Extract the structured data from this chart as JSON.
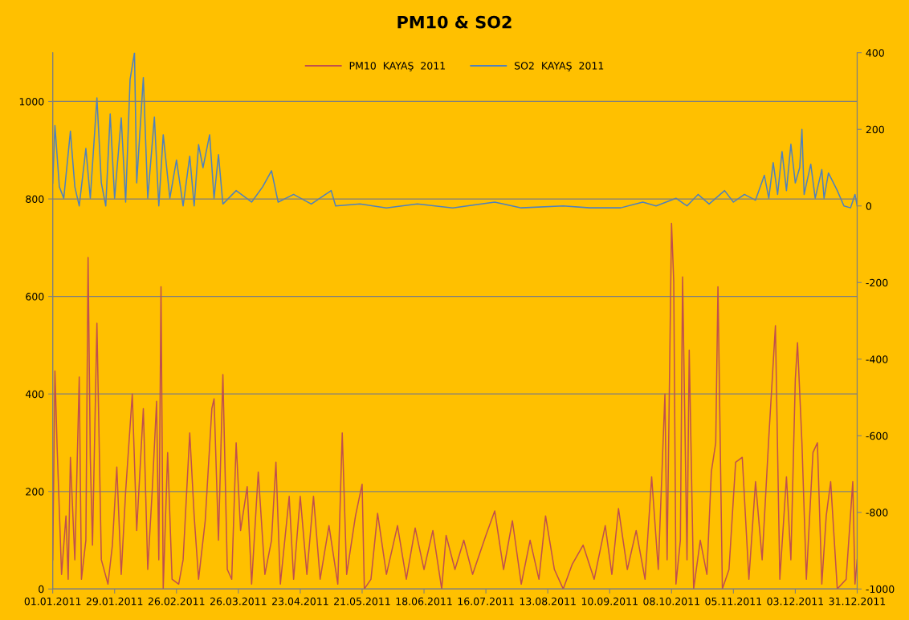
{
  "chart_data": {
    "type": "line",
    "title": "PM10 & SO2",
    "xlim": [
      "2011-01-01",
      "2011-12-31"
    ],
    "xticks": [
      {
        "value": "2011-01-01",
        "label": "01.01.2011"
      },
      {
        "value": "2011-01-29",
        "label": "29.01.2011"
      },
      {
        "value": "2011-02-26",
        "label": "26.02.2011"
      },
      {
        "value": "2011-03-26",
        "label": "26.03.2011"
      },
      {
        "value": "2011-04-23",
        "label": "23.04.2011"
      },
      {
        "value": "2011-05-21",
        "label": "21.05.2011"
      },
      {
        "value": "2011-06-18",
        "label": "18.06.2011"
      },
      {
        "value": "2011-07-16",
        "label": "16.07.2011"
      },
      {
        "value": "2011-08-13",
        "label": "13.08.2011"
      },
      {
        "value": "2011-09-10",
        "label": "10.09.2011"
      },
      {
        "value": "2011-10-08",
        "label": "08.10.2011"
      },
      {
        "value": "2011-11-05",
        "label": "05.11.2011"
      },
      {
        "value": "2011-12-03",
        "label": "03.12.2011"
      },
      {
        "value": "2011-12-31",
        "label": "31.12.2011"
      }
    ],
    "ylim": [
      0,
      1100
    ],
    "yticks": [
      0,
      200,
      400,
      600,
      800,
      1000
    ],
    "y2lim": [
      -1000,
      400
    ],
    "y2ticks": [
      {
        "value": -1000,
        "label": "-1000"
      },
      {
        "value": -800,
        "label": "-800"
      },
      {
        "value": -600,
        "label": "-600"
      },
      {
        "value": -400,
        "label": "-400"
      },
      {
        "value": -200,
        "label": "-200"
      },
      0,
      200,
      400
    ],
    "grid": "y",
    "legend": "top",
    "series": [
      {
        "name": "PM10  KAYAŞ  2011",
        "color": "#c0504d",
        "x": [
          "2011-01-01",
          "2011-01-02",
          "2011-01-03",
          "2011-01-05",
          "2011-01-07",
          "2011-01-08",
          "2011-01-09",
          "2011-01-11",
          "2011-01-13",
          "2011-01-14",
          "2011-01-16",
          "2011-01-17",
          "2011-01-18",
          "2011-01-19",
          "2011-01-21",
          "2011-01-23",
          "2011-01-26",
          "2011-01-28",
          "2011-01-30",
          "2011-02-01",
          "2011-02-03",
          "2011-02-06",
          "2011-02-08",
          "2011-02-11",
          "2011-02-13",
          "2011-02-15",
          "2011-02-17",
          "2011-02-18",
          "2011-02-19",
          "2011-02-20",
          "2011-02-22",
          "2011-02-24",
          "2011-02-27",
          "2011-03-01",
          "2011-03-04",
          "2011-03-06",
          "2011-03-08",
          "2011-03-11",
          "2011-03-14",
          "2011-03-15",
          "2011-03-17",
          "2011-03-19",
          "2011-03-21",
          "2011-03-23",
          "2011-03-25",
          "2011-03-27",
          "2011-03-30",
          "2011-04-01",
          "2011-04-04",
          "2011-04-07",
          "2011-04-10",
          "2011-04-12",
          "2011-04-14",
          "2011-04-18",
          "2011-04-20",
          "2011-04-23",
          "2011-04-26",
          "2011-04-29",
          "2011-05-02",
          "2011-05-06",
          "2011-05-10",
          "2011-05-12",
          "2011-05-14",
          "2011-05-18",
          "2011-05-21",
          "2011-05-22",
          "2011-05-25",
          "2011-05-28",
          "2011-06-01",
          "2011-06-06",
          "2011-06-10",
          "2011-06-14",
          "2011-06-18",
          "2011-06-22",
          "2011-06-26",
          "2011-06-28",
          "2011-07-02",
          "2011-07-06",
          "2011-07-10",
          "2011-07-16",
          "2011-07-20",
          "2011-07-24",
          "2011-07-28",
          "2011-08-01",
          "2011-08-05",
          "2011-08-09",
          "2011-08-12",
          "2011-08-16",
          "2011-08-20",
          "2011-08-24",
          "2011-08-29",
          "2011-09-03",
          "2011-09-08",
          "2011-09-11",
          "2011-09-14",
          "2011-09-18",
          "2011-09-22",
          "2011-09-26",
          "2011-09-29",
          "2011-10-02",
          "2011-10-05",
          "2011-10-06",
          "2011-10-08",
          "2011-10-09",
          "2011-10-10",
          "2011-10-12",
          "2011-10-13",
          "2011-10-15",
          "2011-10-16",
          "2011-10-18",
          "2011-10-21",
          "2011-10-24",
          "2011-10-26",
          "2011-10-28",
          "2011-10-29",
          "2011-10-31",
          "2011-11-03",
          "2011-11-06",
          "2011-11-09",
          "2011-11-12",
          "2011-11-15",
          "2011-11-18",
          "2011-11-21",
          "2011-11-24",
          "2011-11-26",
          "2011-11-29",
          "2011-12-01",
          "2011-12-03",
          "2011-12-04",
          "2011-12-06",
          "2011-12-08",
          "2011-12-11",
          "2011-12-13",
          "2011-12-15",
          "2011-12-17",
          "2011-12-19",
          "2011-12-22",
          "2011-12-26",
          "2011-12-29",
          "2011-12-30",
          "2011-12-31"
        ],
        "values": [
          60,
          447,
          290,
          30,
          150,
          20,
          270,
          60,
          435,
          20,
          100,
          680,
          270,
          90,
          545,
          60,
          10,
          90,
          250,
          30,
          200,
          400,
          120,
          370,
          40,
          200,
          385,
          60,
          620,
          0,
          280,
          20,
          10,
          60,
          320,
          150,
          20,
          140,
          370,
          390,
          100,
          440,
          40,
          20,
          300,
          120,
          210,
          10,
          240,
          30,
          100,
          260,
          10,
          190,
          20,
          190,
          30,
          190,
          20,
          130,
          10,
          320,
          30,
          150,
          215,
          0,
          20,
          155,
          30,
          130,
          20,
          125,
          40,
          120,
          0,
          110,
          40,
          100,
          30,
          110,
          160,
          40,
          140,
          10,
          100,
          20,
          150,
          40,
          0,
          50,
          90,
          20,
          130,
          30,
          165,
          40,
          120,
          20,
          230,
          40,
          400,
          60,
          750,
          630,
          10,
          100,
          640,
          60,
          490,
          0,
          100,
          30,
          240,
          300,
          620,
          0,
          40,
          260,
          270,
          20,
          220,
          60,
          310,
          540,
          20,
          230,
          60,
          430,
          505,
          300,
          20,
          280,
          300,
          10,
          150,
          220,
          0,
          20,
          220,
          10,
          60
        ]
      },
      {
        "name": "SO2  KAYAŞ  2011",
        "color": "#4f81bd",
        "axis": "y2",
        "x": [
          "2011-01-01",
          "2011-01-02",
          "2011-01-04",
          "2011-01-06",
          "2011-01-09",
          "2011-01-11",
          "2011-01-13",
          "2011-01-16",
          "2011-01-18",
          "2011-01-21",
          "2011-01-23",
          "2011-01-25",
          "2011-01-27",
          "2011-01-29",
          "2011-02-01",
          "2011-02-03",
          "2011-02-05",
          "2011-02-07",
          "2011-02-08",
          "2011-02-11",
          "2011-02-13",
          "2011-02-16",
          "2011-02-18",
          "2011-02-20",
          "2011-02-23",
          "2011-02-26",
          "2011-03-01",
          "2011-03-04",
          "2011-03-06",
          "2011-03-08",
          "2011-03-10",
          "2011-03-13",
          "2011-03-15",
          "2011-03-17",
          "2011-03-19",
          "2011-03-25",
          "2011-04-01",
          "2011-04-06",
          "2011-04-10",
          "2011-04-13",
          "2011-04-20",
          "2011-04-28",
          "2011-05-07",
          "2011-05-09",
          "2011-05-20",
          "2011-06-01",
          "2011-06-15",
          "2011-07-01",
          "2011-07-20",
          "2011-08-01",
          "2011-08-20",
          "2011-09-01",
          "2011-09-15",
          "2011-09-25",
          "2011-10-01",
          "2011-10-10",
          "2011-10-15",
          "2011-10-20",
          "2011-10-25",
          "2011-11-01",
          "2011-11-05",
          "2011-11-10",
          "2011-11-15",
          "2011-11-19",
          "2011-11-21",
          "2011-11-23",
          "2011-11-25",
          "2011-11-27",
          "2011-11-29",
          "2011-12-01",
          "2011-12-03",
          "2011-12-05",
          "2011-12-06",
          "2011-12-07",
          "2011-12-10",
          "2011-12-12",
          "2011-12-15",
          "2011-12-16",
          "2011-12-18",
          "2011-12-22",
          "2011-12-25",
          "2011-12-28",
          "2011-12-30",
          "2011-12-31"
        ],
        "values": [
          60,
          210,
          50,
          20,
          195,
          50,
          0,
          150,
          20,
          282,
          60,
          0,
          240,
          20,
          230,
          10,
          330,
          400,
          60,
          335,
          20,
          232,
          0,
          186,
          20,
          120,
          0,
          130,
          0,
          160,
          100,
          186,
          20,
          134,
          5,
          40,
          10,
          50,
          92,
          10,
          30,
          5,
          40,
          0,
          5,
          -5,
          5,
          -5,
          10,
          -5,
          0,
          -5,
          -5,
          10,
          0,
          20,
          0,
          30,
          5,
          40,
          10,
          30,
          15,
          80,
          20,
          113,
          30,
          142,
          40,
          161,
          60,
          100,
          200,
          30,
          109,
          20,
          95,
          20,
          86,
          40,
          0,
          -5,
          30,
          0
        ]
      }
    ]
  }
}
